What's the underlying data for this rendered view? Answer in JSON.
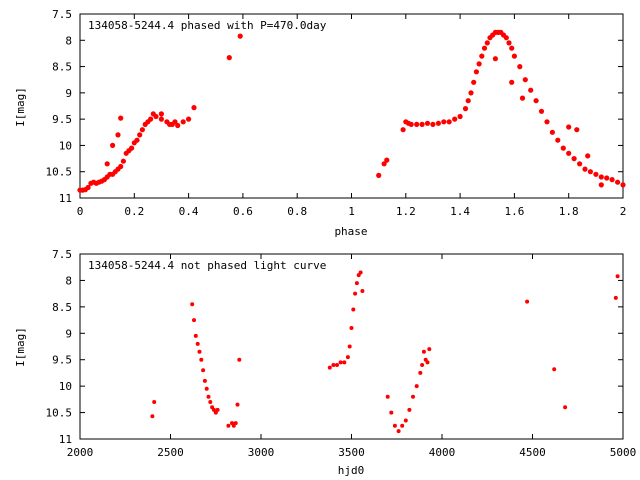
{
  "chart_data": [
    {
      "type": "scatter",
      "title": "134058-5244.4 phased with P=470.0day",
      "xlabel": "phase",
      "ylabel": "I[mag]",
      "xlim": [
        0,
        2
      ],
      "ylim": [
        7.5,
        11
      ],
      "y_inverted": true,
      "xticks": [
        "0",
        "0.2",
        "0.4",
        "0.6",
        "0.8",
        "1",
        "1.2",
        "1.4",
        "1.6",
        "1.8",
        "2"
      ],
      "yticks": [
        "7.5",
        "8",
        "8.5",
        "9",
        "9.5",
        "10",
        "10.5",
        "11"
      ],
      "grid": false,
      "marker_color": "#ff0000",
      "series": [
        {
          "x": [
            0.0,
            0.01,
            0.02,
            0.03,
            0.04,
            0.05,
            0.06,
            0.07,
            0.08,
            0.09,
            0.1,
            0.11,
            0.12,
            0.13,
            0.14,
            0.15,
            0.16,
            0.17,
            0.18,
            0.19,
            0.2,
            0.21,
            0.22,
            0.23,
            0.24,
            0.25,
            0.26,
            0.27,
            0.28,
            0.3,
            0.32,
            0.34,
            0.36,
            0.38,
            0.4,
            0.42,
            0.55,
            0.59,
            0.1,
            0.12,
            0.14,
            0.15,
            0.3,
            0.33,
            0.35,
            1.1,
            1.12,
            1.13,
            1.19,
            1.2,
            1.21,
            1.22,
            1.24,
            1.26,
            1.28,
            1.3,
            1.32,
            1.34,
            1.36,
            1.38,
            1.4,
            1.42,
            1.43,
            1.44,
            1.45,
            1.46,
            1.47,
            1.48,
            1.49,
            1.5,
            1.51,
            1.52,
            1.53,
            1.54,
            1.55,
            1.56,
            1.57,
            1.58,
            1.59,
            1.6,
            1.62,
            1.64,
            1.66,
            1.68,
            1.7,
            1.72,
            1.74,
            1.76,
            1.78,
            1.8,
            1.82,
            1.84,
            1.86,
            1.88,
            1.9,
            1.92,
            1.94,
            1.96,
            1.98,
            2.0,
            1.53,
            1.59,
            1.63,
            1.8,
            1.83,
            1.87,
            1.92
          ],
          "y": [
            10.85,
            10.85,
            10.84,
            10.8,
            10.72,
            10.7,
            10.72,
            10.7,
            10.68,
            10.65,
            10.6,
            10.55,
            10.55,
            10.5,
            10.45,
            10.4,
            10.3,
            10.15,
            10.1,
            10.05,
            9.95,
            9.9,
            9.8,
            9.7,
            9.6,
            9.55,
            9.5,
            9.4,
            9.45,
            9.5,
            9.55,
            9.6,
            9.62,
            9.55,
            9.5,
            9.28,
            8.33,
            7.92,
            10.35,
            10.0,
            9.8,
            9.48,
            9.4,
            9.6,
            9.55,
            10.57,
            10.35,
            10.28,
            9.7,
            9.55,
            9.58,
            9.6,
            9.6,
            9.6,
            9.58,
            9.6,
            9.58,
            9.55,
            9.55,
            9.5,
            9.45,
            9.3,
            9.15,
            9.0,
            8.8,
            8.6,
            8.45,
            8.3,
            8.15,
            8.05,
            7.95,
            7.9,
            7.85,
            7.85,
            7.85,
            7.9,
            7.95,
            8.05,
            8.15,
            8.3,
            8.5,
            8.75,
            8.95,
            9.15,
            9.35,
            9.55,
            9.75,
            9.9,
            10.05,
            10.15,
            10.25,
            10.35,
            10.45,
            10.5,
            10.55,
            10.6,
            10.62,
            10.65,
            10.7,
            10.75,
            8.35,
            8.8,
            9.1,
            9.65,
            9.7,
            10.2,
            10.75
          ]
        }
      ]
    },
    {
      "type": "scatter",
      "title": "134058-5244.4 not phased light curve",
      "xlabel": "hjd0",
      "ylabel": "I[mag]",
      "xlim": [
        2000,
        5000
      ],
      "ylim": [
        7.5,
        11
      ],
      "y_inverted": true,
      "xticks": [
        "2000",
        "2500",
        "3000",
        "3500",
        "4000",
        "4500",
        "5000"
      ],
      "yticks": [
        "7.5",
        "8",
        "8.5",
        "9",
        "9.5",
        "10",
        "10.5",
        "11"
      ],
      "grid": false,
      "marker_color": "#ff0000",
      "series": [
        {
          "x": [
            2400,
            2410,
            2620,
            2630,
            2640,
            2650,
            2660,
            2670,
            2680,
            2690,
            2700,
            2710,
            2720,
            2730,
            2740,
            2750,
            2760,
            2820,
            2840,
            2850,
            2860,
            2870,
            2880,
            3380,
            3400,
            3420,
            3440,
            3460,
            3480,
            3490,
            3500,
            3510,
            3520,
            3530,
            3540,
            3550,
            3560,
            3700,
            3720,
            3740,
            3760,
            3780,
            3800,
            3820,
            3840,
            3860,
            3880,
            3890,
            3900,
            3910,
            3920,
            3930,
            4470,
            4620,
            4680,
            4960,
            4970
          ],
          "y": [
            10.57,
            10.3,
            8.45,
            8.75,
            9.05,
            9.2,
            9.35,
            9.5,
            9.7,
            9.9,
            10.05,
            10.2,
            10.3,
            10.4,
            10.45,
            10.5,
            10.45,
            10.75,
            10.7,
            10.75,
            10.7,
            10.35,
            9.5,
            9.65,
            9.6,
            9.6,
            9.55,
            9.55,
            9.45,
            9.25,
            8.9,
            8.55,
            8.25,
            8.05,
            7.9,
            7.85,
            8.2,
            10.2,
            10.5,
            10.75,
            10.85,
            10.75,
            10.65,
            10.45,
            10.2,
            10.0,
            9.75,
            9.6,
            9.35,
            9.5,
            9.55,
            9.3,
            8.4,
            9.68,
            10.4,
            8.33,
            7.92
          ]
        }
      ]
    }
  ]
}
